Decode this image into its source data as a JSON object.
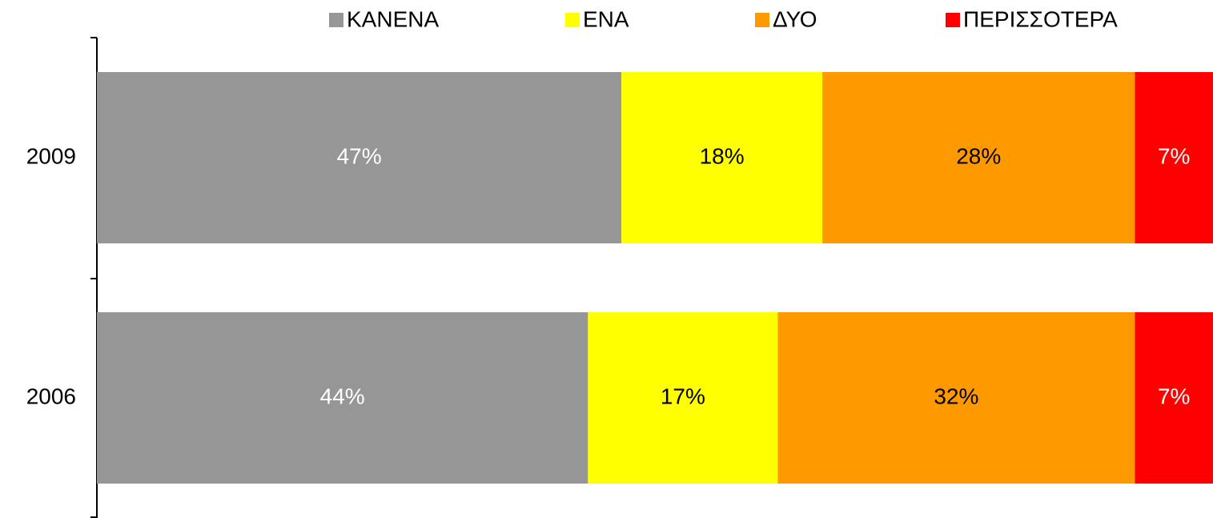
{
  "chart_data": {
    "type": "stacked_bar_horizontal",
    "categories": [
      "2009",
      "2006"
    ],
    "series": [
      {
        "name": "ΚΑΝΕΝΑ",
        "color": "#969696",
        "label_color": "#ffffff",
        "values": [
          47,
          44
        ],
        "value_labels": [
          "47%",
          "44%"
        ]
      },
      {
        "name": "ΕΝΑ",
        "color": "#ffff00",
        "label_color": "#000000",
        "values": [
          18,
          17
        ],
        "value_labels": [
          "18%",
          "17%"
        ]
      },
      {
        "name": "ΔΥΟ",
        "color": "#ff9900",
        "label_color": "#000000",
        "values": [
          28,
          32
        ],
        "value_labels": [
          "28%",
          "32%"
        ]
      },
      {
        "name": "ΠΕΡΙΣΣΟΤΕΡΑ",
        "color": "#ff0000",
        "label_color": "#ffffff",
        "values": [
          7,
          7
        ],
        "value_labels": [
          "7%",
          "7%"
        ]
      }
    ],
    "xlim": [
      0,
      100
    ],
    "legend": "top"
  }
}
